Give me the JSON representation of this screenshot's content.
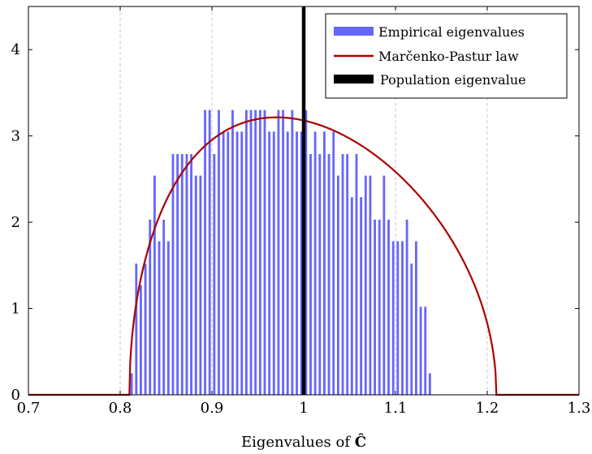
{
  "chart_data": {
    "type": "bar",
    "title": "",
    "xlabel_prefix": "Eigenvalues of ",
    "xlabel_symbol": "Ĉ",
    "ylabel": "",
    "xlim": [
      0.7,
      1.3
    ],
    "ylim": [
      0,
      4.5
    ],
    "xticks": [
      0.7,
      0.8,
      0.9,
      1.0,
      1.1,
      1.2,
      1.3
    ],
    "xtick_labels": [
      "0.7",
      "0.8",
      "0.9",
      "1",
      "1.1",
      "1.2",
      "1.3"
    ],
    "yticks": [
      0,
      1,
      2,
      3,
      4
    ],
    "ytick_labels": [
      "0",
      "1",
      "2",
      "3",
      "4"
    ],
    "grid": "vertical dashed",
    "legend_position": "top-right",
    "series": [
      {
        "name": "Empirical eigenvalues",
        "color": "#6666ff",
        "bin_width": 0.005,
        "x": [
          0.8125,
          0.8175,
          0.8225,
          0.8275,
          0.8325,
          0.8375,
          0.8425,
          0.8475,
          0.8525,
          0.8575,
          0.8625,
          0.8675,
          0.8725,
          0.8775,
          0.8825,
          0.8875,
          0.8925,
          0.8975,
          0.9025,
          0.9075,
          0.9125,
          0.9175,
          0.9225,
          0.9275,
          0.9325,
          0.9375,
          0.9425,
          0.9475,
          0.9525,
          0.9575,
          0.9625,
          0.9675,
          0.9725,
          0.9775,
          0.9825,
          0.9875,
          0.9925,
          0.9975,
          1.0025,
          1.0075,
          1.0125,
          1.0175,
          1.0225,
          1.0275,
          1.0325,
          1.0375,
          1.0425,
          1.0475,
          1.0525,
          1.0575,
          1.0625,
          1.0675,
          1.0725,
          1.0775,
          1.0825,
          1.0875,
          1.0925,
          1.0975,
          1.1025,
          1.1075,
          1.1125,
          1.1175,
          1.1225,
          1.1275,
          1.1325,
          1.1375,
          1.1425,
          1.1475,
          1.1525,
          1.1575,
          1.1625,
          1.1675,
          1.1725,
          1.1775,
          1.1825,
          1.1875,
          1.1925,
          1.1975,
          1.2025,
          1.2075
        ],
        "values": [
          0.25,
          1.52,
          1.27,
          1.52,
          2.03,
          2.54,
          1.78,
          2.03,
          1.78,
          2.79,
          2.79,
          2.79,
          2.79,
          2.79,
          2.54,
          2.54,
          3.3,
          3.3,
          2.79,
          3.3,
          3.05,
          3.05,
          3.3,
          3.05,
          3.05,
          3.3,
          3.3,
          3.3,
          3.3,
          3.3,
          3.05,
          3.05,
          3.3,
          3.3,
          3.05,
          3.3,
          3.05,
          3.05,
          3.3,
          2.79,
          3.05,
          2.79,
          3.05,
          2.79,
          3.05,
          2.54,
          2.79,
          2.79,
          2.29,
          2.79,
          2.29,
          2.54,
          2.54,
          2.03,
          2.03,
          2.54,
          2.03,
          1.78,
          1.78,
          1.78,
          2.03,
          1.52,
          1.78,
          1.02,
          1.02,
          0.25,
          0,
          0,
          0,
          0,
          0,
          0,
          0,
          0,
          0,
          0,
          0,
          0,
          0,
          0
        ]
      },
      {
        "name": "Marčenko-Pastur law",
        "color": "#aa0000",
        "ratio": 0.01
      },
      {
        "name": "Population eigenvalue",
        "color": "#000000",
        "x": 1.0
      }
    ]
  }
}
